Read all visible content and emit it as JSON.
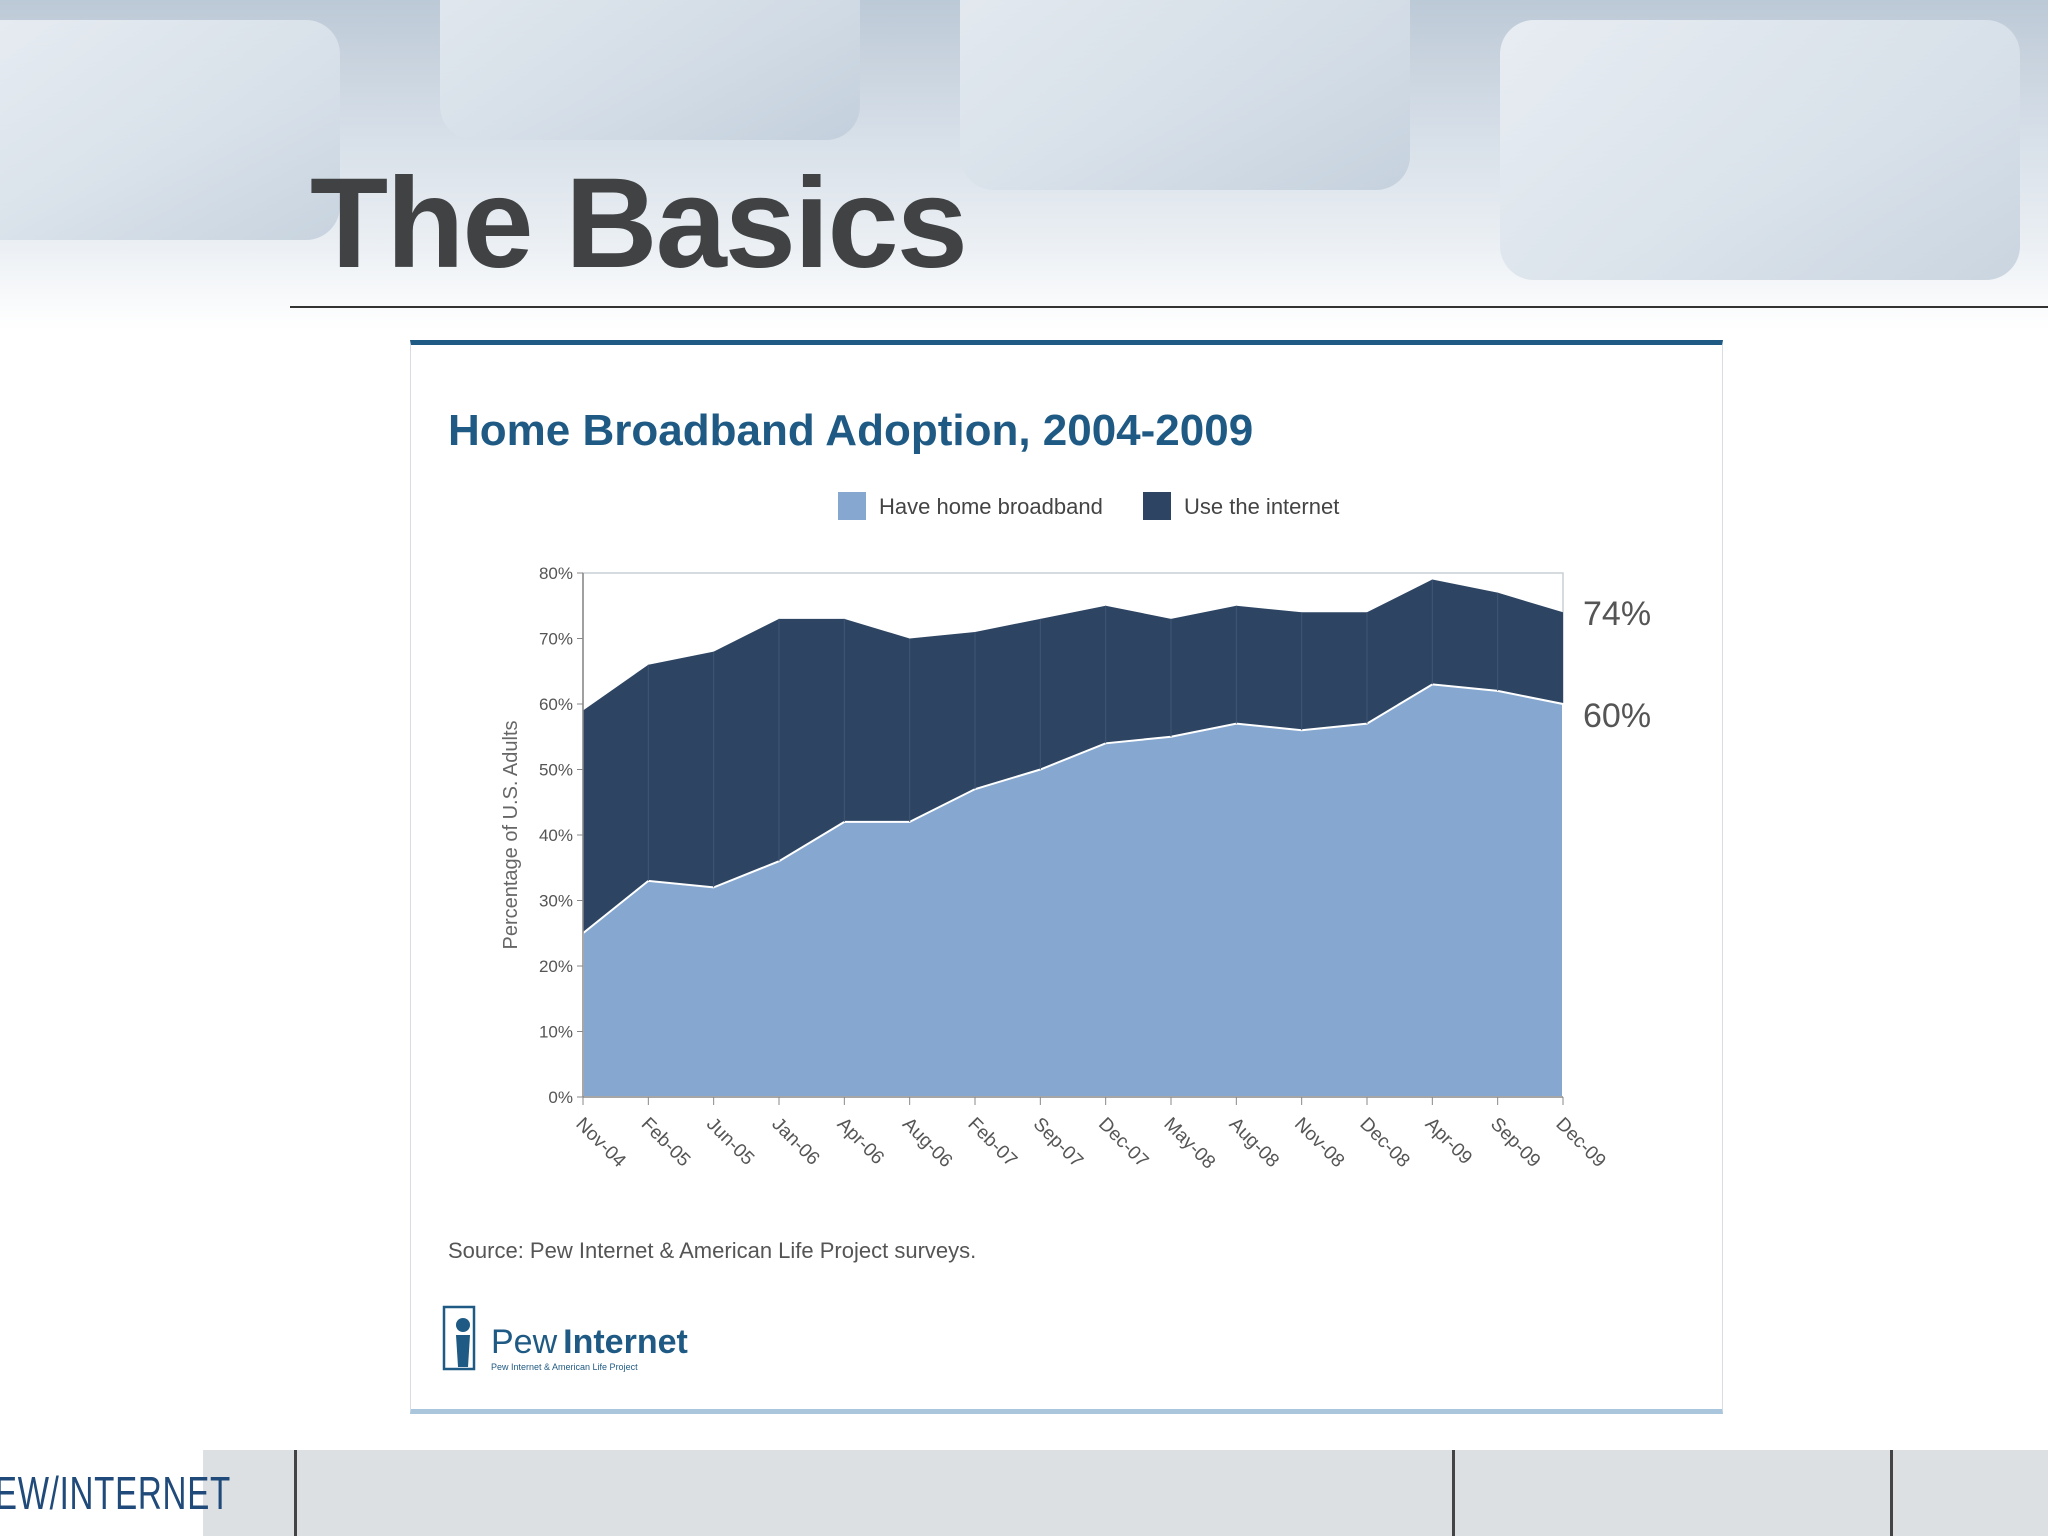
{
  "slide": {
    "title": "The Basics",
    "footer_logo": "PEW/INTERNET"
  },
  "chart_data": {
    "type": "area",
    "title": "Home Broadband Adoption, 2004-2009",
    "ylabel": "Percentage of U.S. Adults",
    "xlabel": "",
    "ylim": [
      0,
      80
    ],
    "yticks": [
      "0%",
      "10%",
      "20%",
      "30%",
      "40%",
      "50%",
      "60%",
      "70%",
      "80%"
    ],
    "categories": [
      "Nov-04",
      "Feb-05",
      "Jun-05",
      "Jan-06",
      "Apr-06",
      "Aug-06",
      "Feb-07",
      "Sep-07",
      "Dec-07",
      "May-08",
      "Aug-08",
      "Nov-08",
      "Dec-08",
      "Apr-09",
      "Sep-09",
      "Dec-09"
    ],
    "series": [
      {
        "name": "Use the internet",
        "color": "#2d4563",
        "values": [
          59,
          66,
          68,
          73,
          73,
          70,
          71,
          73,
          75,
          73,
          75,
          74,
          74,
          79,
          77,
          74
        ]
      },
      {
        "name": "Have home broadband",
        "color": "#86a8d0",
        "values": [
          25,
          33,
          32,
          36,
          42,
          42,
          47,
          50,
          54,
          55,
          57,
          56,
          57,
          63,
          62,
          60
        ]
      }
    ],
    "legend_position": "top",
    "grid": false,
    "end_labels": [
      "74%",
      "60%"
    ],
    "source": "Source: Pew Internet & American Life Project surveys."
  },
  "logo": {
    "name_light": "Pew",
    "name_bold": "Internet",
    "tagline": "Pew Internet & American Life Project"
  }
}
